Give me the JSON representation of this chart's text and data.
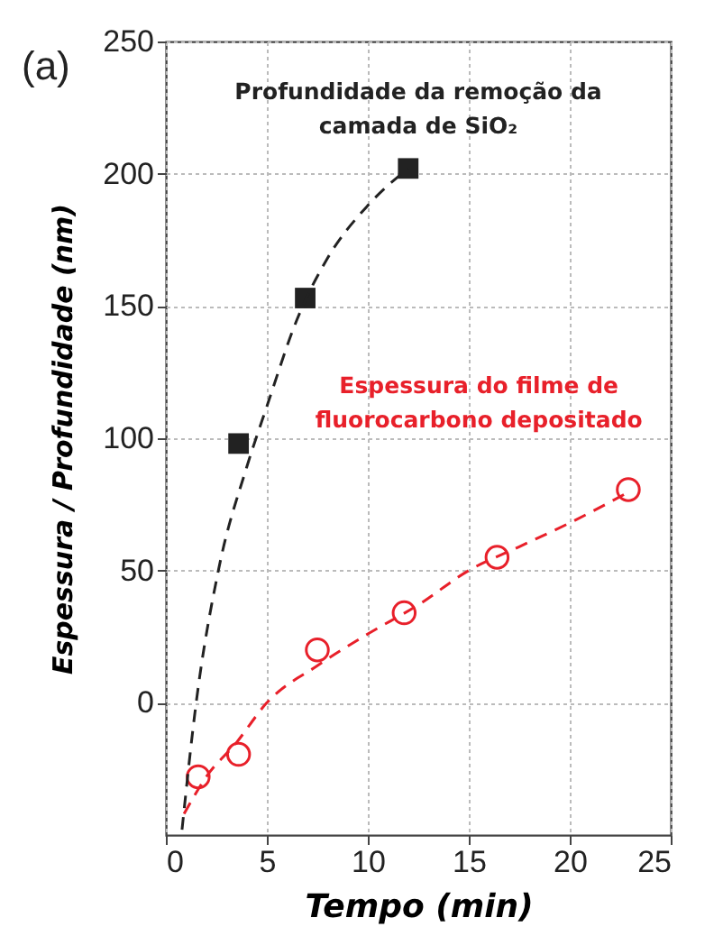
{
  "chart_data": {
    "type": "scatter",
    "xlabel": "Tempo (min)",
    "ylabel": "Espessura / Profundidade  (nm)",
    "xlim": [
      0,
      25
    ],
    "xticks": [
      0,
      5,
      10,
      15,
      20,
      25
    ],
    "ylim": [
      -50,
      250
    ],
    "yticks": [
      0,
      50,
      100,
      150,
      200,
      250
    ],
    "grid": true,
    "annotations": [
      "(a)"
    ],
    "series": [
      {
        "name": "Profundidade da remoção da\ncamada de SiO₂",
        "color": "#222222",
        "marker": "square",
        "x": [
          3.6,
          6.9,
          12.0
        ],
        "values": [
          98,
          153,
          202
        ]
      },
      {
        "name": "Espessura do filme de\nfluorocarbono depositado",
        "color": "#e8202a",
        "marker": "circle",
        "x": [
          1.6,
          3.6,
          7.5,
          11.8,
          16.4,
          22.9
        ],
        "values": [
          -28,
          -19.5,
          20,
          34,
          55,
          80.6
        ]
      },
      {
        "type": "line",
        "color": "#222222",
        "line_style": "dashed",
        "x": [
          0.8,
          1.5,
          2.6,
          4,
          5,
          6.5,
          8,
          10,
          12
        ],
        "values": [
          -48,
          0,
          50,
          89,
          112,
          145,
          168,
          188,
          202
        ]
      },
      {
        "type": "line",
        "color": "#e8202a",
        "line_style": "dashed",
        "x": [
          0.9,
          2,
          3.5,
          5,
          7.5,
          10,
          12.5,
          15,
          17.5,
          20,
          23
        ],
        "values": [
          -42,
          -28,
          -15,
          0,
          14,
          26,
          37,
          50,
          59,
          68,
          80
        ]
      }
    ]
  }
}
